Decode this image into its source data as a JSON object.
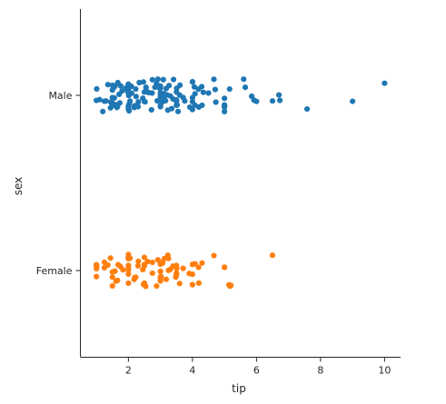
{
  "chart_data": {
    "type": "scatter",
    "subtype": "strip",
    "title": "",
    "xlabel": "tip",
    "ylabel": "sex",
    "categories": [
      "Male",
      "Female"
    ],
    "xlim": [
      0.5,
      10.5
    ],
    "xticks": [
      2,
      4,
      6,
      8,
      10
    ],
    "grid": false,
    "series": [
      {
        "category": "Male",
        "color": "#1f77b4",
        "values": [
          1.0,
          1.01,
          1.1,
          1.2,
          1.25,
          1.3,
          1.36,
          1.44,
          1.45,
          1.48,
          1.5,
          1.5,
          1.5,
          1.5,
          1.56,
          1.57,
          1.58,
          1.6,
          1.64,
          1.66,
          1.67,
          1.71,
          1.73,
          1.8,
          1.92,
          1.97,
          2.0,
          2.0,
          2.0,
          2.0,
          2.0,
          2.0,
          2.0,
          2.0,
          2.0,
          2.01,
          2.02,
          2.03,
          2.03,
          2.09,
          2.1,
          2.18,
          2.2,
          2.23,
          2.24,
          2.3,
          2.31,
          2.34,
          2.45,
          2.47,
          2.5,
          2.5,
          2.52,
          2.55,
          2.56,
          2.6,
          2.64,
          2.72,
          2.74,
          2.75,
          2.83,
          2.88,
          2.9,
          2.92,
          2.98,
          3.0,
          3.0,
          3.0,
          3.0,
          3.0,
          3.0,
          3.0,
          3.02,
          3.06,
          3.09,
          3.11,
          3.12,
          3.14,
          3.16,
          3.18,
          3.21,
          3.23,
          3.27,
          3.31,
          3.35,
          3.39,
          3.41,
          3.5,
          3.5,
          3.5,
          3.5,
          3.5,
          3.51,
          3.52,
          3.55,
          3.6,
          3.61,
          3.71,
          3.76,
          3.92,
          4.0,
          4.0,
          4.0,
          4.0,
          4.0,
          4.06,
          4.08,
          4.08,
          4.19,
          4.2,
          4.29,
          4.3,
          4.34,
          4.5,
          4.67,
          4.71,
          4.73,
          5.0,
          5.0,
          5.0,
          5.0,
          5.0,
          5.16,
          5.6,
          5.65,
          5.85,
          5.92,
          6.0,
          6.5,
          6.7,
          6.73,
          7.58,
          9.0,
          10.0,
          1.5,
          1.76,
          2.05
        ]
      },
      {
        "category": "Female",
        "color": "#ff7f0e",
        "values": [
          1.0,
          1.0,
          1.0,
          1.0,
          1.01,
          1.25,
          1.36,
          1.44,
          1.5,
          1.5,
          1.5,
          1.58,
          1.61,
          1.66,
          1.68,
          1.83,
          2.0,
          2.0,
          2.0,
          2.0,
          2.0,
          2.0,
          2.0,
          2.0,
          2.0,
          2.03,
          2.05,
          2.18,
          2.2,
          2.23,
          2.3,
          2.31,
          2.45,
          2.47,
          2.5,
          2.5,
          2.5,
          2.5,
          2.54,
          2.6,
          2.75,
          2.75,
          2.88,
          3.0,
          3.0,
          3.0,
          3.0,
          3.0,
          3.0,
          3.0,
          3.0,
          3.0,
          3.02,
          3.07,
          3.12,
          3.18,
          3.23,
          3.25,
          3.25,
          3.31,
          3.39,
          3.48,
          3.5,
          3.5,
          3.5,
          3.51,
          3.71,
          3.9,
          4.0,
          4.0,
          4.0,
          4.0,
          4.19,
          4.2,
          4.3,
          4.67,
          5.0,
          5.0,
          5.14,
          5.17,
          6.5,
          1.25,
          1.75,
          2.92,
          3.6,
          4.08,
          5.2
        ]
      }
    ]
  }
}
